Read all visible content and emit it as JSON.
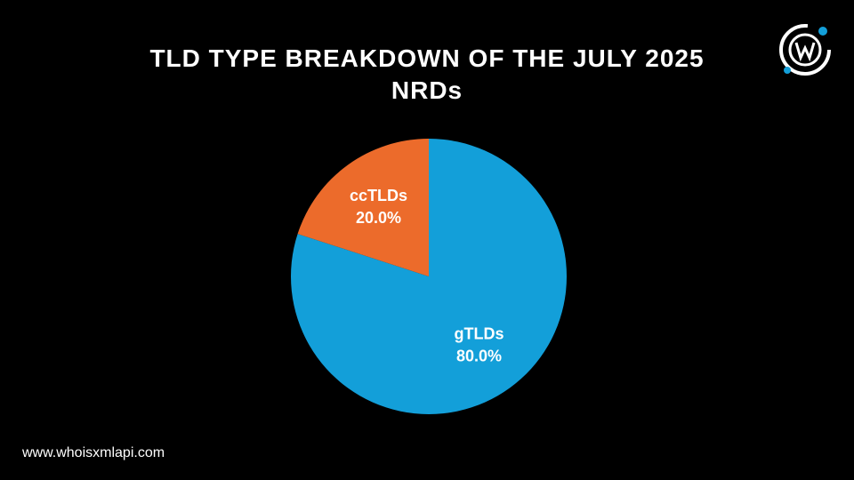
{
  "chart_data": {
    "type": "pie",
    "title": "TLD TYPE BREAKDOWN OF THE JULY 2025 NRDs",
    "categories": [
      "gTLDs",
      "ccTLDs"
    ],
    "values": [
      80,
      20
    ],
    "value_labels": [
      "80.0%",
      "20.0%"
    ],
    "colors": [
      "#139fd9",
      "#ec6b2b"
    ]
  },
  "footer": "www.whoisxmlapi.com"
}
